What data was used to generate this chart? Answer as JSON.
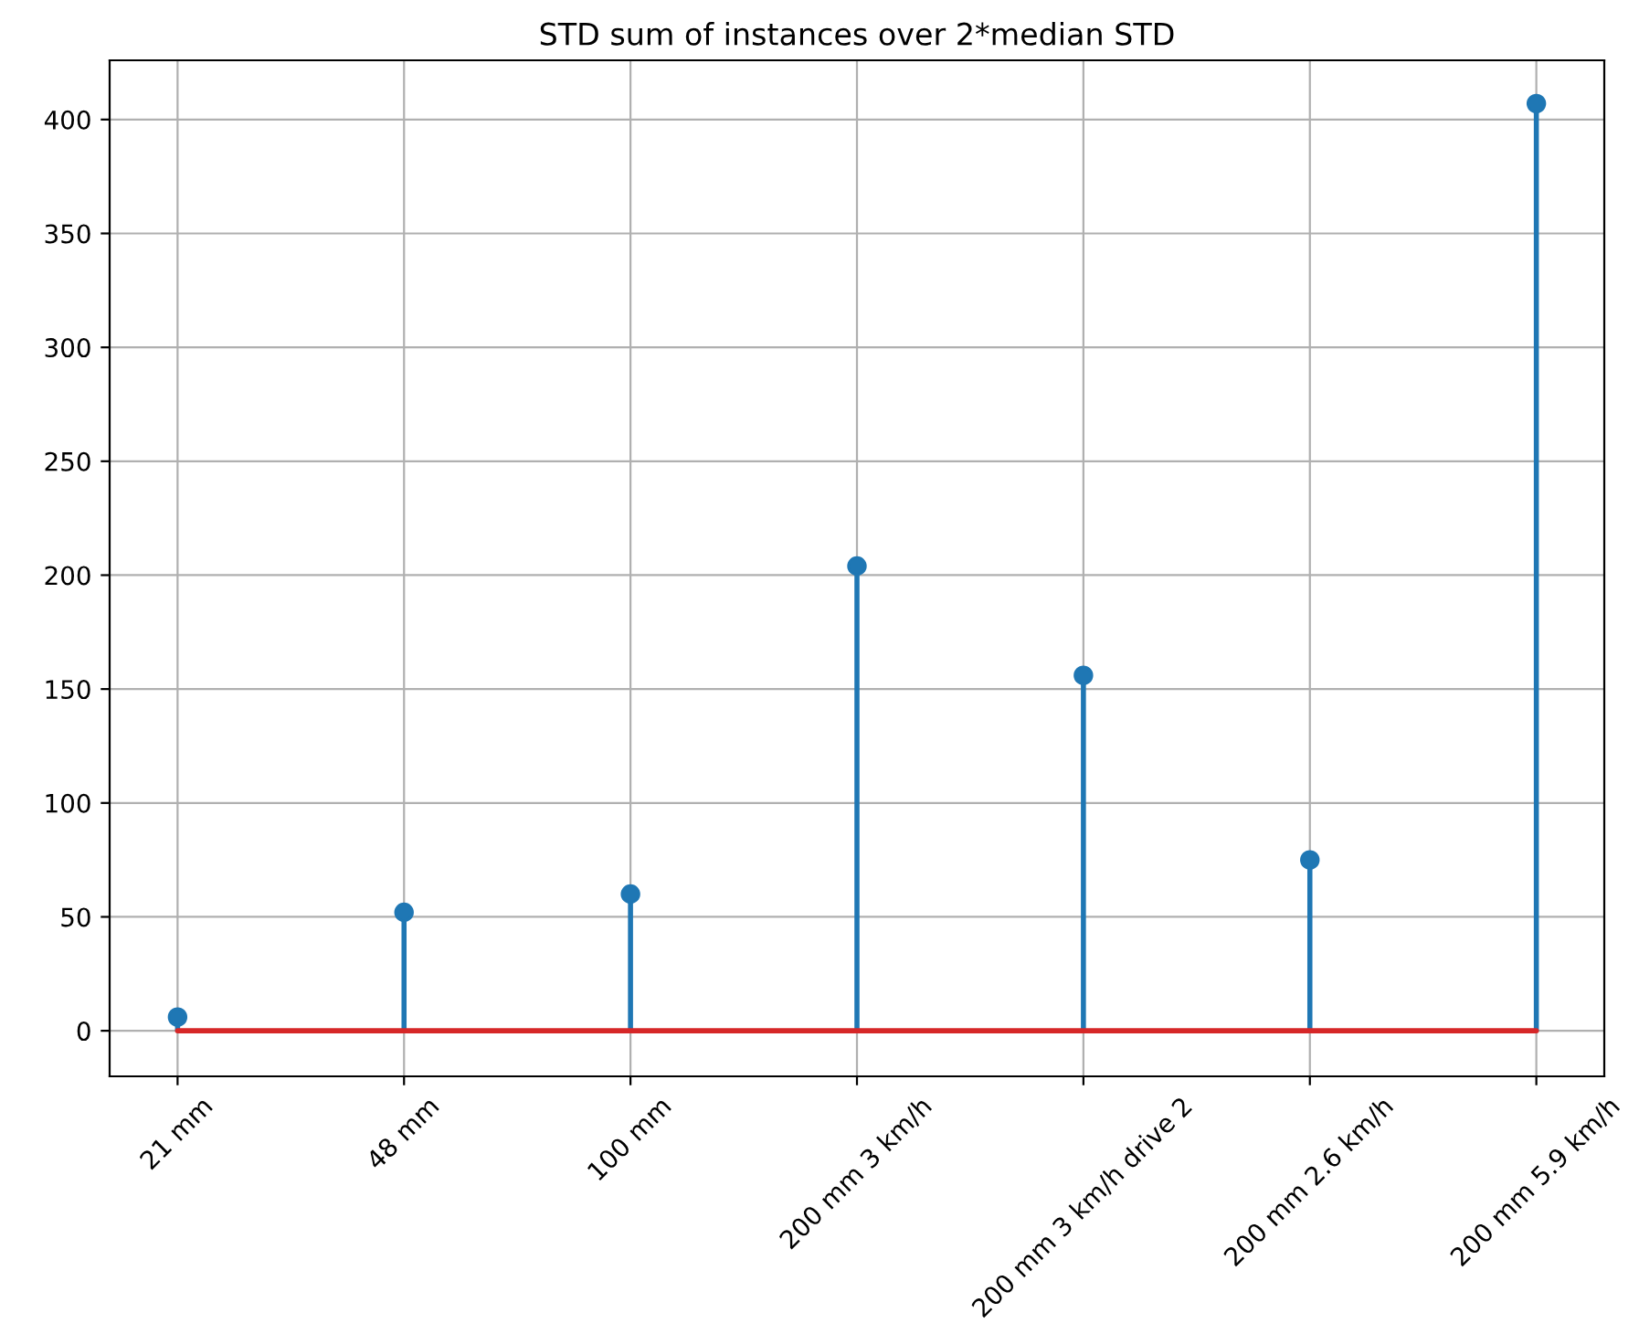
{
  "chart_data": {
    "type": "lollipop",
    "title": "STD sum of instances over 2*median STD",
    "categories": [
      "21 mm",
      "48 mm",
      "100 mm",
      "200 mm 3 km/h",
      "200 mm 3 km/h drive 2",
      "200 mm 2.6 km/h",
      "200 mm 5.9 km/h"
    ],
    "series": [
      {
        "color": "#1f77b4",
        "values": [
          6,
          52,
          60,
          204,
          156,
          75,
          407
        ]
      }
    ],
    "ylim": [
      -20,
      426
    ],
    "yticks": [
      0,
      50,
      100,
      150,
      200,
      250,
      300,
      350,
      400
    ],
    "ref_lines": [
      {
        "axis": "y",
        "value": 0,
        "color": "#d62728",
        "line_style": "solid"
      }
    ],
    "grid": true,
    "marker": "circle"
  }
}
